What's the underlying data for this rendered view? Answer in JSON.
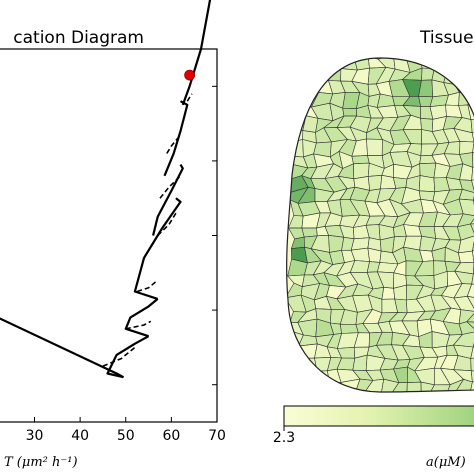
{
  "left_panel": {
    "title": "cation Diagram",
    "xlabel": "T (μm² h⁻¹)",
    "xticks": [
      "30",
      "40",
      "50",
      "60",
      "70"
    ]
  },
  "right_panel": {
    "title": "Tissue",
    "colorbar_min_label": "2.3",
    "colorbar_label": "a(μM)"
  },
  "colors": {
    "curve": "#000000",
    "marker": "#e00000",
    "cell_low": "#f6fbc8",
    "cell_mid": "#a9d889",
    "cell_high": "#2f8a3f",
    "cell_edge": "#333333"
  },
  "chart_data": [
    {
      "type": "line",
      "title": "cation Diagram",
      "xlabel": "T (μm² h⁻¹)",
      "ylabel": "",
      "xlim": [
        22,
        70
      ],
      "ylim": [
        0,
        1
      ],
      "grid": false,
      "series": [
        {
          "style": "solid",
          "segments": [
            [
              [
                22,
                0.28
              ],
              [
                48,
                0.13
              ],
              [
                49.5,
                0.12
              ]
            ],
            [
              [
                49.5,
                0.12
              ],
              [
                46,
                0.13
              ],
              [
                48,
                0.18
              ],
              [
                52,
                0.21
              ],
              [
                55,
                0.23
              ]
            ],
            [
              [
                55,
                0.23
              ],
              [
                50,
                0.25
              ],
              [
                51,
                0.28
              ],
              [
                55,
                0.31
              ],
              [
                57,
                0.33
              ]
            ],
            [
              [
                57,
                0.33
              ],
              [
                52,
                0.35
              ],
              [
                54,
                0.44
              ],
              [
                58,
                0.52
              ],
              [
                62,
                0.59
              ],
              [
                61,
                0.6
              ]
            ],
            [
              [
                56,
                0.5
              ],
              [
                57,
                0.55
              ],
              [
                60,
                0.62
              ],
              [
                62.5,
                0.68
              ],
              [
                62,
                0.69
              ]
            ],
            [
              [
                58.5,
                0.66
              ],
              [
                60.5,
                0.72
              ],
              [
                62,
                0.78
              ],
              [
                63.5,
                0.85
              ],
              [
                62,
                0.86
              ]
            ],
            [
              [
                62.5,
                0.85
              ],
              [
                64,
                0.9
              ],
              [
                66.5,
                1.0
              ],
              [
                69.5,
                1.2
              ]
            ]
          ]
        },
        {
          "style": "dashed",
          "segments": [
            [
              [
                45,
                0.15
              ],
              [
                49,
                0.17
              ],
              [
                52,
                0.2
              ]
            ],
            [
              [
                50,
                0.25
              ],
              [
                54,
                0.26
              ],
              [
                55.5,
                0.27
              ]
            ],
            [
              [
                52.5,
                0.35
              ],
              [
                55,
                0.36
              ],
              [
                57,
                0.38
              ]
            ],
            [
              [
                57,
                0.5
              ],
              [
                59.5,
                0.53
              ],
              [
                61,
                0.56
              ]
            ],
            [
              [
                57.5,
                0.6
              ],
              [
                59.5,
                0.63
              ],
              [
                62,
                0.66
              ]
            ],
            [
              [
                59,
                0.72
              ],
              [
                60,
                0.74
              ],
              [
                62,
                0.77
              ]
            ],
            [
              [
                63.5,
                0.86
              ],
              [
                64.5,
                0.88
              ]
            ]
          ]
        }
      ],
      "highlight_point": {
        "x": 64,
        "y": 0.93
      }
    },
    {
      "type": "heatmap",
      "title": "Tissue",
      "description_values": {
        "colorbar_min": 2.3,
        "colorbar_label": "a(μM)"
      },
      "hotspots": [
        {
          "u": 0.34,
          "v": 0.14,
          "level": 0.6
        },
        {
          "u": 0.66,
          "v": 0.1,
          "level": 1.0
        },
        {
          "u": 0.07,
          "v": 0.39,
          "level": 1.0
        },
        {
          "u": 0.04,
          "v": 0.58,
          "level": 1.0
        },
        {
          "u": 0.6,
          "v": 0.94,
          "level": 0.55
        },
        {
          "u": 0.2,
          "v": 0.8,
          "level": 0.45
        }
      ]
    }
  ]
}
